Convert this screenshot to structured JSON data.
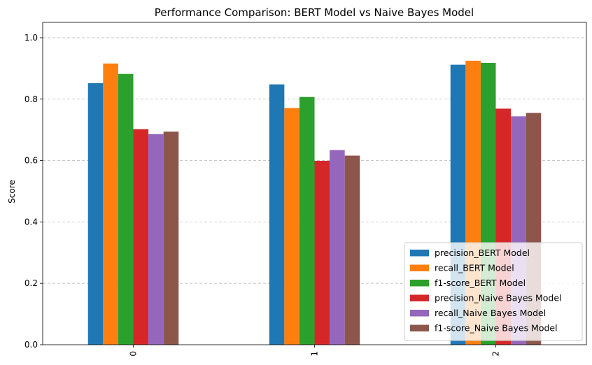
{
  "chart_data": {
    "type": "bar",
    "title": "Performance Comparison: BERT Model vs Naive Bayes Model",
    "xlabel": "",
    "ylabel": "Score",
    "categories": [
      "0",
      "1",
      "2"
    ],
    "ylim": [
      0,
      1.05
    ],
    "yticks": [
      0.0,
      0.2,
      0.4,
      0.6,
      0.8,
      1.0
    ],
    "ytick_labels": [
      "0.0",
      "0.2",
      "0.4",
      "0.6",
      "0.8",
      "1.0"
    ],
    "grid": "y-dashed",
    "legend_position": "bottom-right",
    "series": [
      {
        "name": "precision_BERT Model",
        "color": "#1f77b4",
        "values": [
          0.852,
          0.848,
          0.912
        ]
      },
      {
        "name": "recall_BERT Model",
        "color": "#ff7f0e",
        "values": [
          0.916,
          0.771,
          0.925
        ]
      },
      {
        "name": "f1-score_BERT Model",
        "color": "#2ca02c",
        "values": [
          0.882,
          0.807,
          0.918
        ]
      },
      {
        "name": "precision_Naive Bayes Model",
        "color": "#d62728",
        "values": [
          0.702,
          0.599,
          0.769
        ]
      },
      {
        "name": "recall_Naive Bayes Model",
        "color": "#9467bd",
        "values": [
          0.686,
          0.634,
          0.744
        ]
      },
      {
        "name": "f1-score_Naive Bayes Model",
        "color": "#8c564b",
        "values": [
          0.694,
          0.616,
          0.755
        ]
      }
    ]
  }
}
